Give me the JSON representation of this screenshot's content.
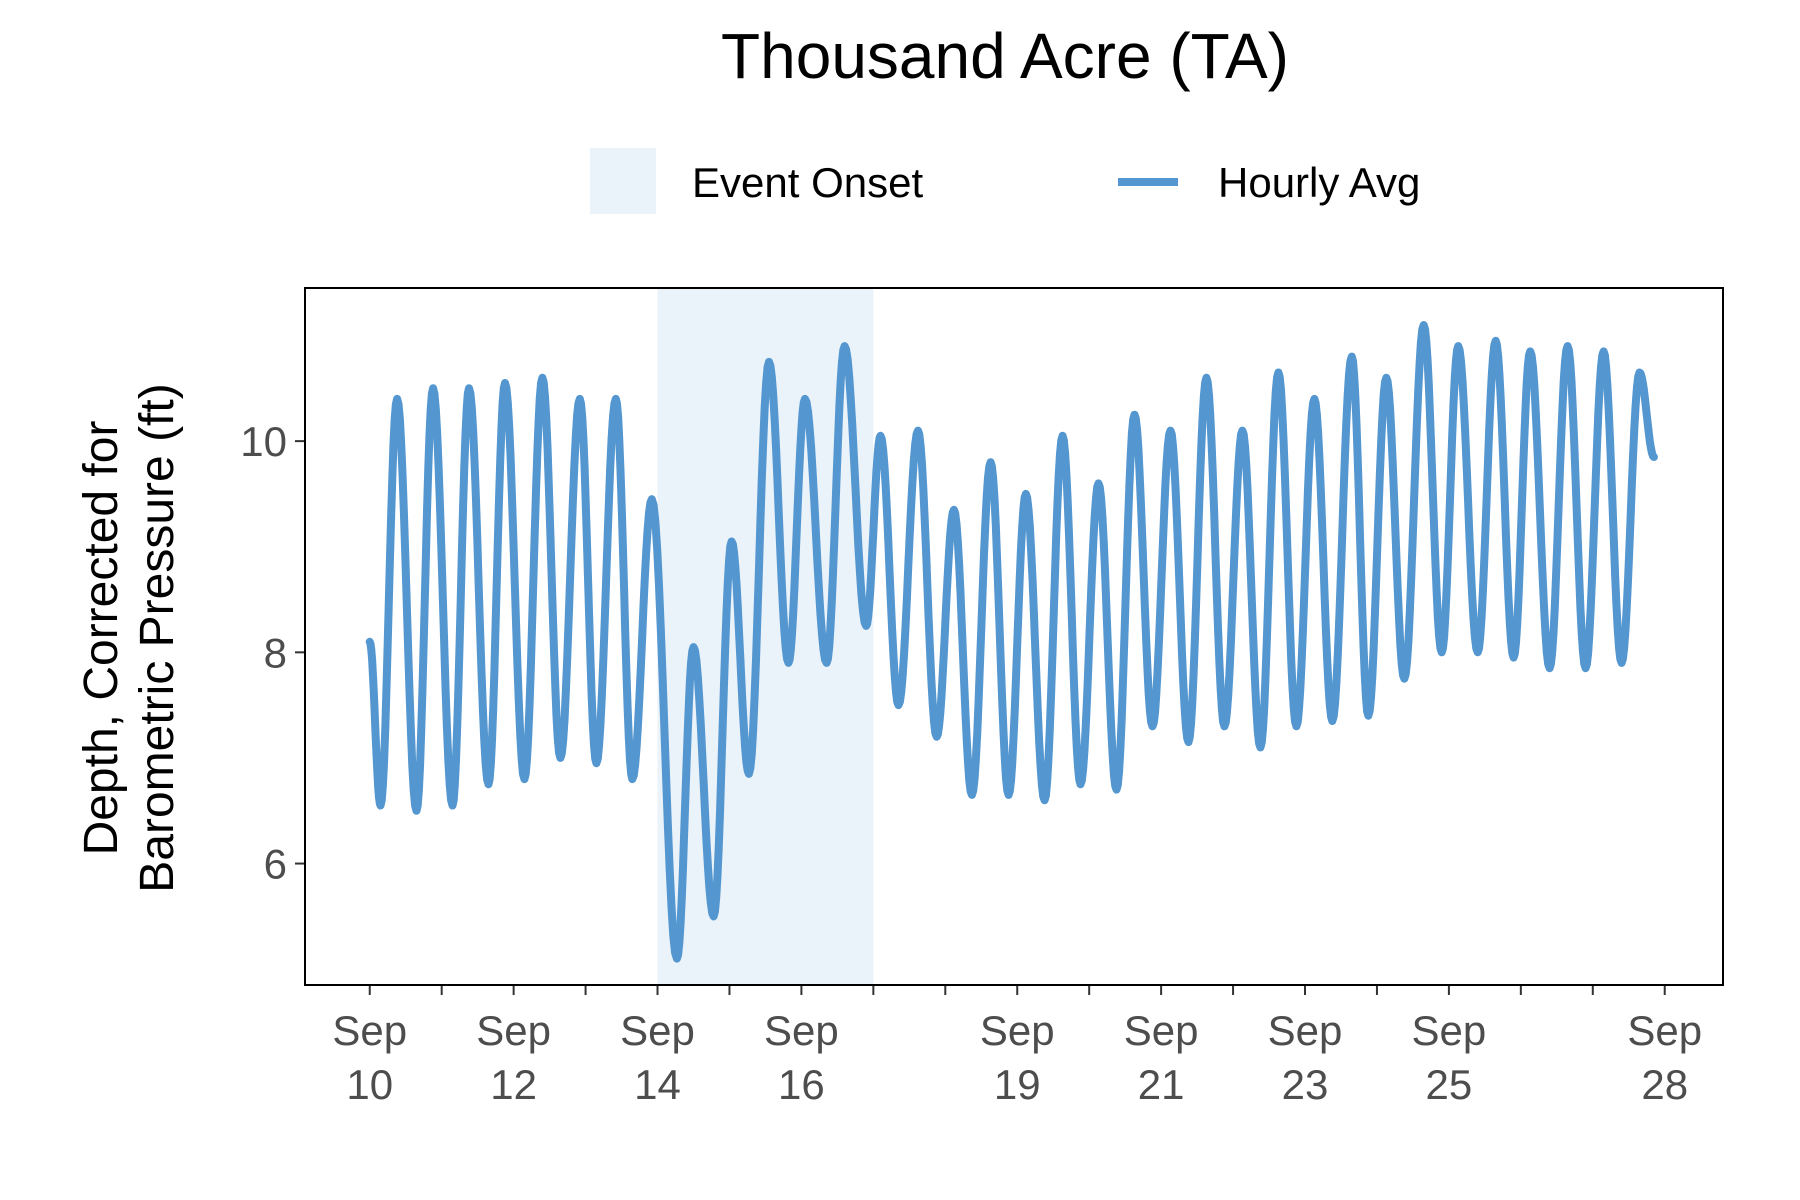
{
  "chart_data": {
    "type": "line",
    "title": "Thousand Acre (TA)",
    "ylabel_lines": [
      "Depth, Corrected for",
      "Barometric Pressure (ft)"
    ],
    "xlabel": "",
    "legend": {
      "placement": "top",
      "items": [
        {
          "label": "Event Onset",
          "kind": "shaded-region",
          "color": "#eaf2fa"
        },
        {
          "label": "Hourly Avg",
          "kind": "line",
          "color": "#5496cf"
        }
      ]
    },
    "ylim": [
      4.85,
      11.45
    ],
    "yticks": [
      6,
      8,
      10
    ],
    "x_range_days": [
      "Sep 9.1",
      "Sep 28.8"
    ],
    "xticks_minor_days": [
      10,
      11,
      12,
      13,
      14,
      15,
      16,
      17,
      18,
      19,
      20,
      21,
      22,
      23,
      24,
      25,
      26,
      27,
      28
    ],
    "xtick_labels": [
      {
        "day": 10,
        "lines": [
          "Sep",
          "10"
        ]
      },
      {
        "day": 12,
        "lines": [
          "Sep",
          "12"
        ]
      },
      {
        "day": 14,
        "lines": [
          "Sep",
          "14"
        ]
      },
      {
        "day": 16,
        "lines": [
          "Sep",
          "16"
        ]
      },
      {
        "day": 19,
        "lines": [
          "Sep",
          "19"
        ]
      },
      {
        "day": 21,
        "lines": [
          "Sep",
          "21"
        ]
      },
      {
        "day": 23,
        "lines": [
          "Sep",
          "23"
        ]
      },
      {
        "day": 25,
        "lines": [
          "Sep",
          "25"
        ]
      },
      {
        "day": 28,
        "lines": [
          "Sep",
          "28"
        ]
      }
    ],
    "event_onset": {
      "start_day": 14.0,
      "end_day": 17.0
    },
    "series": [
      {
        "name": "Hourly Avg",
        "color": "#5496cf",
        "x_unit": "day of September (fractional)",
        "extrema": [
          [
            10.0,
            8.1
          ],
          [
            10.15,
            6.55
          ],
          [
            10.38,
            10.4
          ],
          [
            10.65,
            6.5
          ],
          [
            10.88,
            10.5
          ],
          [
            11.15,
            6.55
          ],
          [
            11.38,
            10.5
          ],
          [
            11.65,
            6.75
          ],
          [
            11.88,
            10.55
          ],
          [
            12.15,
            6.8
          ],
          [
            12.4,
            10.6
          ],
          [
            12.65,
            7.0
          ],
          [
            12.92,
            10.4
          ],
          [
            13.15,
            6.95
          ],
          [
            13.42,
            10.4
          ],
          [
            13.65,
            6.8
          ],
          [
            13.92,
            9.45
          ],
          [
            14.27,
            5.1
          ],
          [
            14.5,
            8.05
          ],
          [
            14.78,
            5.5
          ],
          [
            15.03,
            9.05
          ],
          [
            15.27,
            6.85
          ],
          [
            15.55,
            10.75
          ],
          [
            15.82,
            7.9
          ],
          [
            16.05,
            10.4
          ],
          [
            16.35,
            7.9
          ],
          [
            16.6,
            10.9
          ],
          [
            16.9,
            8.25
          ],
          [
            17.1,
            10.05
          ],
          [
            17.35,
            7.5
          ],
          [
            17.62,
            10.1
          ],
          [
            17.88,
            7.2
          ],
          [
            18.12,
            9.35
          ],
          [
            18.37,
            6.65
          ],
          [
            18.63,
            9.8
          ],
          [
            18.88,
            6.65
          ],
          [
            19.12,
            9.5
          ],
          [
            19.38,
            6.6
          ],
          [
            19.63,
            10.05
          ],
          [
            19.88,
            6.75
          ],
          [
            20.13,
            9.6
          ],
          [
            20.38,
            6.7
          ],
          [
            20.63,
            10.25
          ],
          [
            20.88,
            7.3
          ],
          [
            21.13,
            10.1
          ],
          [
            21.38,
            7.15
          ],
          [
            21.63,
            10.6
          ],
          [
            21.88,
            7.3
          ],
          [
            22.13,
            10.1
          ],
          [
            22.38,
            7.1
          ],
          [
            22.63,
            10.65
          ],
          [
            22.88,
            7.3
          ],
          [
            23.13,
            10.4
          ],
          [
            23.38,
            7.35
          ],
          [
            23.65,
            10.8
          ],
          [
            23.88,
            7.4
          ],
          [
            24.13,
            10.6
          ],
          [
            24.38,
            7.75
          ],
          [
            24.65,
            11.1
          ],
          [
            24.9,
            8.0
          ],
          [
            25.13,
            10.9
          ],
          [
            25.4,
            8.0
          ],
          [
            25.65,
            10.95
          ],
          [
            25.9,
            7.95
          ],
          [
            26.13,
            10.85
          ],
          [
            26.4,
            7.85
          ],
          [
            26.65,
            10.9
          ],
          [
            26.9,
            7.85
          ],
          [
            27.15,
            10.85
          ],
          [
            27.4,
            7.9
          ],
          [
            27.65,
            10.65
          ],
          [
            27.85,
            9.85
          ]
        ]
      }
    ]
  }
}
